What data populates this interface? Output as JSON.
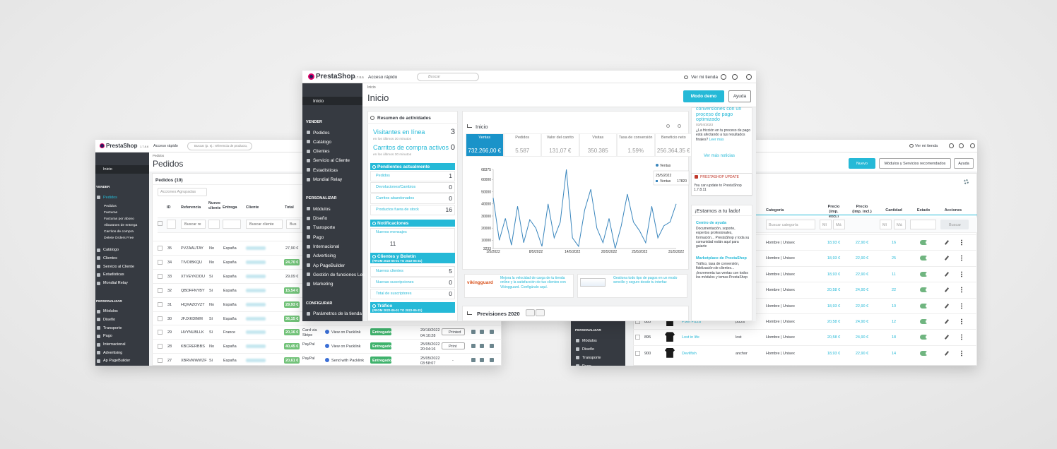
{
  "left": {
    "header": {
      "logo": "PrestaShop",
      "version": "1.7.8.6",
      "quick_access": "Acceso rápido",
      "search": "Buscar (p. ej.: referencia de producto,"
    },
    "sidebar": {
      "home": "Inicio",
      "sections": [
        {
          "title": "VENDER",
          "items": [
            {
              "label": "Pedidos",
              "children": [
                "Pedidos",
                "Facturas",
                "Facturas por abono",
                "Albaranes de entrega",
                "Carritos de compra",
                "Delete Orders Free"
              ]
            },
            {
              "label": "Catálogo"
            },
            {
              "label": "Clientes"
            },
            {
              "label": "Servicio al Cliente"
            },
            {
              "label": "Estadísticas"
            },
            {
              "label": "Mondial Relay"
            }
          ]
        },
        {
          "title": "PERSONALIZAR",
          "items": [
            {
              "label": "Módulos"
            },
            {
              "label": "Diseño"
            },
            {
              "label": "Transporte"
            },
            {
              "label": "Pago"
            },
            {
              "label": "Internacional"
            },
            {
              "label": "Advertising"
            },
            {
              "label": "Ap PageBuilder"
            }
          ]
        }
      ]
    },
    "breadcrumb": "Pedidos",
    "title": "Pedidos",
    "panel_title": "Pedidos (19)",
    "bulk_actions": "Acciones Agrupadas",
    "columns": [
      "ID",
      "Referencia",
      "Nuevo cliente",
      "Entrega",
      "Cliente",
      "Total"
    ],
    "filters": [
      "Buscar re",
      "Buscar cliente",
      "Bus"
    ],
    "rows": [
      {
        "id": 35,
        "reference": "PVZAAUTAY",
        "new_client": "No",
        "country": "España",
        "total": "27,90 €"
      },
      {
        "id": 34,
        "reference": "TIVOIBKQU",
        "new_client": "No",
        "country": "España",
        "total": "24,70 €",
        "total_color": "#72c279"
      },
      {
        "id": 33,
        "reference": "XTVEYKDOU",
        "new_client": "Sí",
        "country": "España",
        "total": "29,09 €"
      },
      {
        "id": 32,
        "reference": "QBDFFNYBY",
        "new_client": "Sí",
        "country": "España",
        "total": "15,54 €",
        "total_color": "#72c279"
      },
      {
        "id": 31,
        "reference": "HQXAZOVZT",
        "new_client": "No",
        "country": "España",
        "total": "29,93 €",
        "total_color": "#72c279"
      },
      {
        "id": 30,
        "reference": "JFJXKDIMM",
        "new_client": "Sí",
        "country": "España",
        "total": "36,15 €",
        "total_color": "#72c279"
      },
      {
        "id": 29,
        "reference": "HVYNUBLLK",
        "new_client": "Sí",
        "country": "France",
        "total": "20,16 €",
        "total_color": "#72c279",
        "payment": "Card via Stripe",
        "shipping": "View on Packlink",
        "status": "Entregado",
        "date": "29/10/2022 04:10:28",
        "print": "Printed"
      },
      {
        "id": 28,
        "reference": "KBCRERBBS",
        "new_client": "No",
        "country": "España",
        "total": "40,45 €",
        "total_color": "#72c279",
        "payment": "PayPal",
        "shipping": "View on Packlink",
        "status": "Entregado",
        "date": "25/05/2022 20:04:16",
        "print": "Print"
      },
      {
        "id": 27,
        "reference": "XBRVMWWZF",
        "new_client": "Sí",
        "country": "España",
        "total": "20,61 €",
        "total_color": "#72c279",
        "payment": "PayPal",
        "shipping": "Send with Packlink",
        "status": "Entregado",
        "date": "25/05/2022 03:58:07",
        "print": "-"
      }
    ]
  },
  "right": {
    "header": {
      "view_store": "Ver mi tienda"
    },
    "buttons": [
      "Nuevo",
      "Módulos y Servicios recomendados",
      "Ayuda"
    ],
    "sidebar": {
      "sections": [
        {
          "title": "PERSONALIZAR",
          "items": [
            {
              "label": "Módulos"
            },
            {
              "label": "Diseño"
            },
            {
              "label": "Transporte"
            },
            {
              "label": "Pago"
            }
          ]
        }
      ]
    },
    "columns": [
      "Categoría",
      "Precio (imp. excl.)",
      "Precio (imp. incl.)",
      "Cantidad",
      "Estado",
      "Acciones"
    ],
    "filters": [
      "Buscar categoría",
      "Mí",
      "Má",
      "Mí",
      "Má",
      "Buscar"
    ],
    "rows": [
      {
        "category": "Hombre | Unisex",
        "price_excl": "18,93 €",
        "price_incl": "22,90 €",
        "quantity": 16
      },
      {
        "category": "Hombre | Unisex",
        "price_excl": "18,93 €",
        "price_incl": "22,90 €",
        "quantity": 25
      },
      {
        "category": "Hombre | Unisex",
        "price_excl": "18,93 €",
        "price_incl": "22,90 €",
        "quantity": 11
      },
      {
        "category": "Hombre | Unisex",
        "price_excl": "20,58 €",
        "price_incl": "24,90 €",
        "quantity": 22
      },
      {
        "category": "Hombre | Unisex",
        "price_excl": "18,93 €",
        "price_incl": "22,90 €",
        "quantity": 10
      },
      {
        "id": 885,
        "name": "Pixel Pizza",
        "reference": "pizza",
        "category": "Hombre | Unisex",
        "price_excl": "20,58 €",
        "price_incl": "24,90 €",
        "quantity": 12
      },
      {
        "id": 895,
        "name": "Lost in life",
        "reference": "lost",
        "category": "Hombre | Unisex",
        "price_excl": "20,58 €",
        "price_incl": "24,90 €",
        "quantity": 18
      },
      {
        "id": 900,
        "name": "Devilfish",
        "reference": "anchor",
        "category": "Hombre | Unisex",
        "price_excl": "18,93 €",
        "price_incl": "22,90 €",
        "quantity": 14
      }
    ]
  },
  "center": {
    "header": {
      "logo": "PrestaShop",
      "version": "1.7.8.6",
      "quick_access": "Acceso rápido",
      "search": "Buscar",
      "view_store": "Ver mi tienda"
    },
    "sidebar": {
      "home": "Inicio",
      "sections": [
        {
          "title": "VENDER",
          "items": [
            {
              "label": "Pedidos"
            },
            {
              "label": "Catálogo"
            },
            {
              "label": "Clientes"
            },
            {
              "label": "Servicio al Cliente"
            },
            {
              "label": "Estadísticas"
            },
            {
              "label": "Mondial Relay"
            }
          ]
        },
        {
          "title": "PERSONALIZAR",
          "items": [
            {
              "label": "Módulos"
            },
            {
              "label": "Diseño"
            },
            {
              "label": "Transporte"
            },
            {
              "label": "Pago"
            },
            {
              "label": "Internacional"
            },
            {
              "label": "Advertising"
            },
            {
              "label": "Ap PageBuilder"
            },
            {
              "label": "Gestión de funciones Leo"
            },
            {
              "label": "Marketing"
            }
          ]
        },
        {
          "title": "CONFIGURAR",
          "items": [
            {
              "label": "Parámetros de la tienda"
            }
          ]
        }
      ]
    },
    "breadcrumb": "Inicio",
    "title": "Inicio",
    "buttons": [
      "Modo demo",
      "Ayuda"
    ],
    "activity": {
      "title": "Resumen de actividades",
      "online": {
        "label": "Visitantes en línea",
        "value": 3,
        "note": "en los últimos 30 minutos"
      },
      "carts": {
        "label": "Carritos de compra activos",
        "value": 0,
        "note": "en los últimos 30 minutos"
      },
      "sections": [
        {
          "title": "Pendientes actualmente",
          "rows": [
            {
              "label": "Pedidos",
              "value": 1
            },
            {
              "label": "Devoluciones/Cambios",
              "value": 0
            },
            {
              "label": "Carritos abandonados",
              "value": 0
            },
            {
              "label": "Productos fuera de stock",
              "value": 16
            }
          ]
        },
        {
          "title": "Notificaciones",
          "rows": [
            {
              "label": "Nuevos mensajes",
              "value": 11
            }
          ]
        },
        {
          "title": "Clientes y Boletín",
          "period": "(FROM 2022-05-01 TO 2022-05-31)",
          "rows": [
            {
              "label": "Nuevos clientes",
              "value": 5
            },
            {
              "label": "Nuevas suscripciones",
              "value": 0
            },
            {
              "label": "Total de suscriptores",
              "value": 0
            }
          ]
        },
        {
          "title": "Tráfico",
          "period": "(FROM 2022-05-01 TO 2022-05-31)"
        }
      ]
    },
    "dashboard": {
      "title": "Inicio",
      "kpis": [
        {
          "label": "Ventas",
          "value": "732.266,00 €"
        },
        {
          "label": "Pedidos",
          "value": "5.587"
        },
        {
          "label": "Valor del carrito",
          "value": "131,07 €"
        },
        {
          "label": "Visitas",
          "value": "350.385"
        },
        {
          "label": "Tasa de conversión",
          "value": "1.59%"
        },
        {
          "label": "Beneficio neto",
          "value": "256.364,35 €"
        }
      ],
      "chart": {
        "type": "line",
        "categories": [
          "1/5/2022",
          null,
          null,
          null,
          null,
          null,
          null,
          "8/5/2022",
          null,
          null,
          null,
          null,
          null,
          "14/5/2022",
          null,
          null,
          null,
          null,
          null,
          "20/5/2022",
          null,
          null,
          null,
          null,
          "25/5/2022",
          null,
          null,
          null,
          null,
          null,
          "31/5/2022"
        ],
        "series": [
          {
            "name": "Ventas",
            "color": "#3a86bd",
            "values": [
              45000,
              10000,
              28000,
              6000,
              38000,
              8000,
              27000,
              20000,
              5000,
              40000,
              12000,
              25000,
              68375,
              12000,
              5000,
              35000,
              52000,
              20000,
              8000,
              28000,
              3233,
              22000,
              48000,
              25000,
              17820,
              8000,
              38000,
              12000,
              22000,
              25000,
              40000
            ]
          }
        ],
        "ylim": [
          3233,
          68375
        ],
        "yticks": [
          3233,
          10000,
          20000,
          30000,
          40000,
          50000,
          60000,
          68375
        ],
        "tooltip_index": 24
      }
    },
    "promos": [
      {
        "logo": "vikingguard",
        "text": "Mejora la velocidad de carga de tu tienda online y la satisfacción de tus clientes con Vikingguard. Configúralo aquí."
      },
      {
        "text": "Gestiona todo tipo de pagos en un modo sencillo y seguro desde tu interfaz"
      }
    ],
    "forecast": {
      "title": "Previsiones",
      "year": 2020
    },
    "news": {
      "title": "conversiones con un proceso de pago optimizado",
      "date": "03/04/2023",
      "text": "¿La fricción en tu proceso de pago está afectando a tus resultados finales? ",
      "link": "Leer más",
      "more": "Ver más noticias"
    },
    "update": {
      "title": "PRESTASHOP UPDATE",
      "text": "You can update to PrestaShop 1.7.8.11"
    },
    "help": {
      "title": "¡Estamos a tu lado!",
      "items": [
        {
          "title": "Centro de ayuda",
          "text": "Documentación, soporte, expertos profesionales, formación... PrestaShop y toda su comunidad están aquí para guiarte"
        },
        {
          "title": "Marketplace de PrestaShop",
          "text": "Tráfico, tasa de conversión, fidelización de clientes... ¡Incrementa tus ventas con todos los módulos y temas PrestaShop"
        }
      ]
    }
  }
}
